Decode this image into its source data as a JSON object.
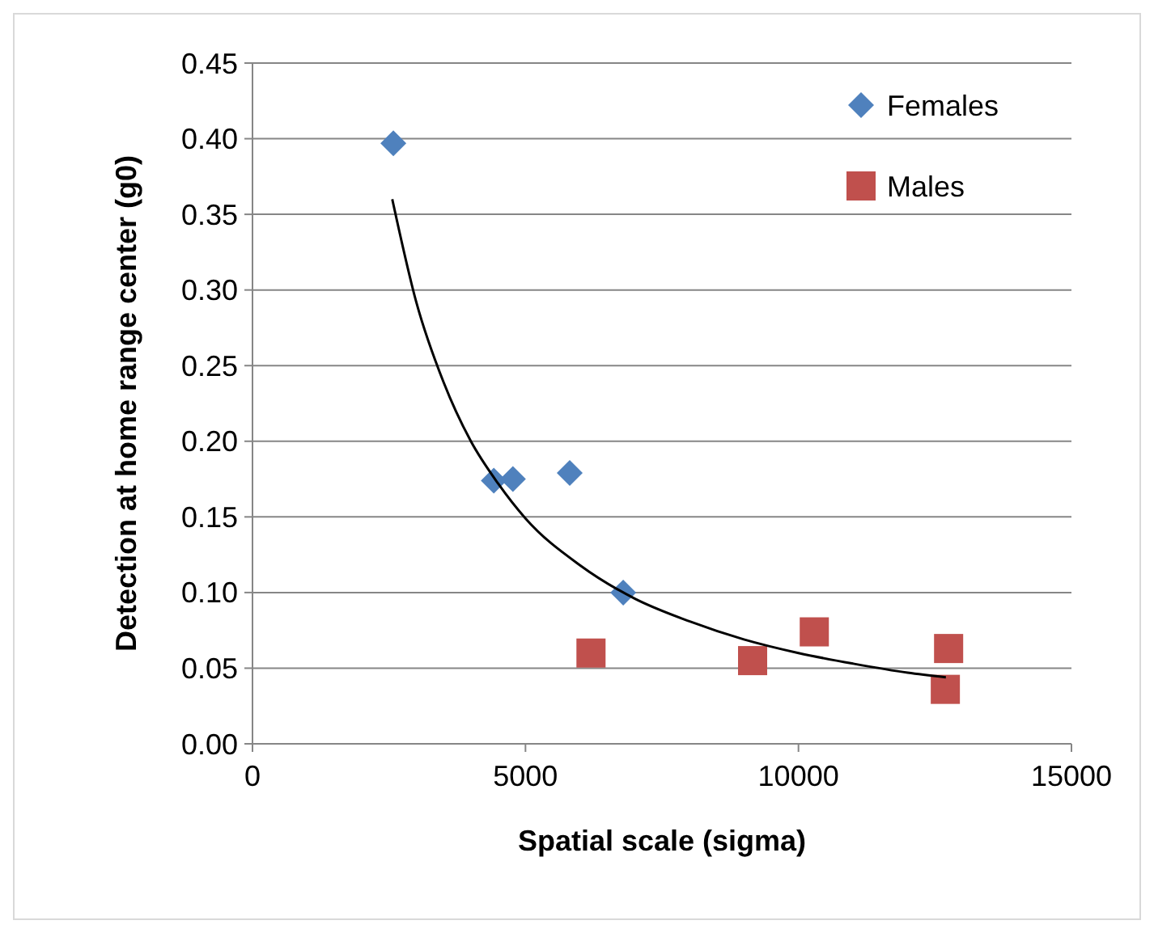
{
  "chart_data": {
    "type": "scatter",
    "xlabel": "Spatial scale (sigma)",
    "ylabel": "Detection at home range center (g0)",
    "xlim": [
      0,
      15000
    ],
    "xticks": [
      0,
      5000,
      10000,
      15000
    ],
    "ylim": [
      0,
      0.45
    ],
    "yticks": [
      {
        "value": 0,
        "label": "0.00"
      },
      {
        "value": 0.05,
        "label": "0.05"
      },
      {
        "value": 0.1,
        "label": "0.10"
      },
      {
        "value": 0.15,
        "label": "0.15"
      },
      {
        "value": 0.2,
        "label": "0.20"
      },
      {
        "value": 0.25,
        "label": "0.25"
      },
      {
        "value": 0.3,
        "label": "0.30"
      },
      {
        "value": 0.35,
        "label": "0.35"
      },
      {
        "value": 0.4,
        "label": "0.40"
      },
      {
        "value": 0.45,
        "label": "0.45"
      }
    ],
    "grid": "y",
    "legend": "top right",
    "series": [
      {
        "name": "Females",
        "color": "#4f81bd",
        "marker": "diamond",
        "x": [
          2580,
          4420,
          4770,
          5810,
          6790
        ],
        "values": [
          0.397,
          0.174,
          0.175,
          0.179,
          0.1
        ]
      },
      {
        "name": "Males",
        "color": "#c0504d",
        "marker": "square",
        "x": [
          6200,
          9160,
          10290,
          12750,
          12690
        ],
        "values": [
          0.06,
          0.055,
          0.074,
          0.063,
          0.036
        ]
      },
      {
        "type": "line",
        "color": "#000000",
        "marker": "none",
        "x": [
          2560,
          3000,
          3500,
          4000,
          4500,
          5000,
          6000,
          7000,
          8000,
          9000,
          10000,
          11000,
          12000,
          12700
        ],
        "values": [
          0.36,
          0.292,
          0.239,
          0.2,
          0.172,
          0.149,
          0.118,
          0.096,
          0.081,
          0.069,
          0.06,
          0.053,
          0.047,
          0.044
        ]
      }
    ]
  }
}
